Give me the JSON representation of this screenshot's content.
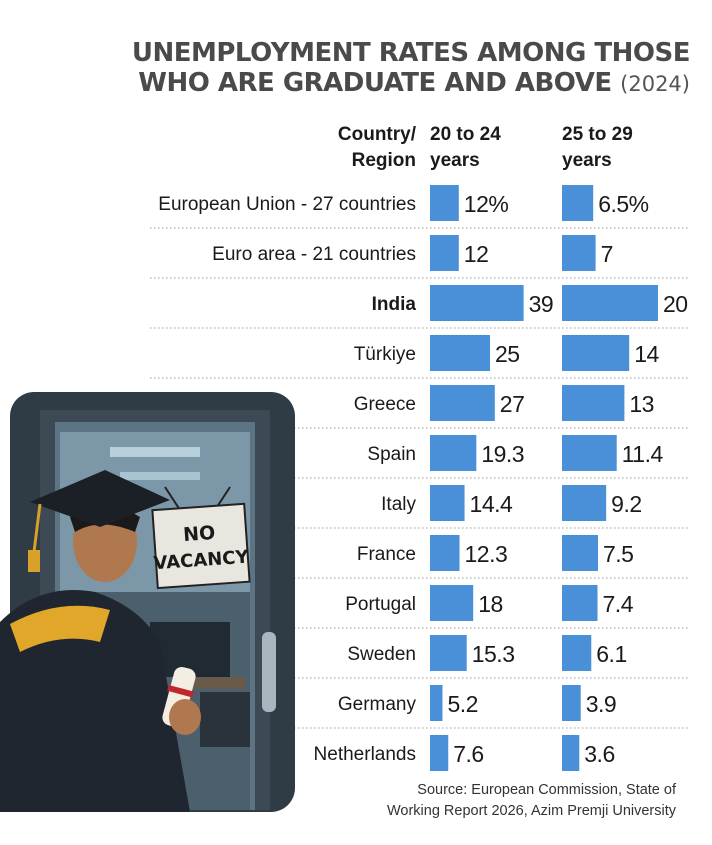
{
  "title_line1": "UNEMPLOYMENT RATES AMONG THOSE",
  "title_line2": "WHO ARE GRADUATE AND ABOVE",
  "title_year": "(2024)",
  "header": {
    "country_line1": "Country/",
    "country_line2": "Region",
    "col1_line1": "20 to 24",
    "col1_line2": "years",
    "col2_line1": "25 to 29",
    "col2_line2": "years"
  },
  "illustration": {
    "sign_line1": "NO",
    "sign_line2": "VACANCY"
  },
  "source_line1": "Source: European Commission, State of",
  "source_line2": "Working Report 2026, Azim Premji University",
  "colors": {
    "bar": "#4a90d9",
    "title": "#4a4a4a",
    "text": "#1a1a1a"
  },
  "chart_data": {
    "type": "bar",
    "orientation": "horizontal",
    "categories": [
      "European Union - 27 countries",
      "Euro area - 21 countries",
      "India",
      "Türkiye",
      "Greece",
      "Spain",
      "Italy",
      "France",
      "Portugal",
      "Sweden",
      "Germany",
      "Netherlands"
    ],
    "highlight": "India",
    "series": [
      {
        "name": "20 to 24 years",
        "values": [
          12,
          12,
          39,
          25,
          27,
          19.3,
          14.4,
          12.3,
          18,
          15.3,
          5.2,
          7.6
        ],
        "labels": [
          "12%",
          "12",
          "39",
          "25",
          "27",
          "19.3",
          "14.4",
          "12.3",
          "18",
          "15.3",
          "5.2",
          "7.6"
        ]
      },
      {
        "name": "25 to 29 years",
        "values": [
          6.5,
          7,
          20,
          14,
          13,
          11.4,
          9.2,
          7.5,
          7.4,
          6.1,
          3.9,
          3.6
        ],
        "labels": [
          "6.5%",
          "7",
          "20",
          "14",
          "13",
          "11.4",
          "9.2",
          "7.5",
          "7.4",
          "6.1",
          "3.9",
          "3.6"
        ]
      }
    ]
  }
}
